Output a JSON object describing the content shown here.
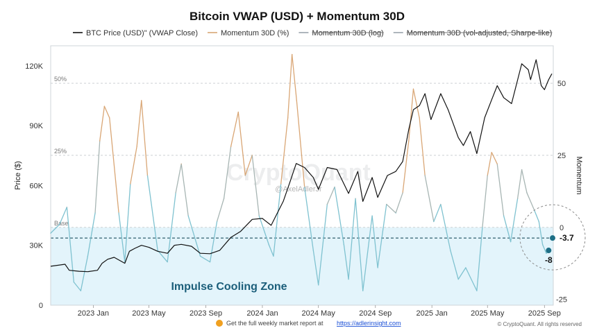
{
  "chart_data": {
    "type": "line",
    "title": "Bitcoin VWAP (USD) + Momentum 30D",
    "legend": [
      {
        "label": "BTC Price (USD)\" (VWAP Close)",
        "color": "#111111",
        "struck": false
      },
      {
        "label": "Momentum 30D (%)",
        "color": "#d9a675",
        "struck": false
      },
      {
        "label": "Momentum 30D (log)",
        "color": "#9aa3ab",
        "struck": true
      },
      {
        "label": "Momentum 30D (vol-adjusted, Sharpe-like)",
        "color": "#9aa3ab",
        "struck": true
      }
    ],
    "legend_position": "top",
    "y_left": {
      "label": "Price ($)",
      "ticks": [
        "0",
        "30K",
        "60K",
        "90K",
        "120K"
      ],
      "tick_values": [
        0,
        30000,
        60000,
        90000,
        120000
      ],
      "range": [
        0,
        130000
      ]
    },
    "y_right": {
      "label": "Momentum",
      "ticks": [
        "-25",
        "0",
        "25",
        "50"
      ],
      "tick_values": [
        -25,
        0,
        25,
        50
      ],
      "range": [
        -27,
        63
      ]
    },
    "x_axis": {
      "ticks": [
        "2023 Jan",
        "2023 May",
        "2023 Sep",
        "2024 Jan",
        "2024 May",
        "2024 Sep",
        "2025 Jan",
        "2025 May",
        "2025 Sep"
      ],
      "tick_dates": [
        "2023-01-01",
        "2023-05-01",
        "2023-09-01",
        "2024-01-01",
        "2024-05-01",
        "2024-09-01",
        "2025-01-01",
        "2025-05-01",
        "2025-09-01"
      ],
      "range": [
        "2022-10-01",
        "2025-09-20"
      ]
    },
    "reference_lines": [
      {
        "label": "50%",
        "value": 50
      },
      {
        "label": "25%",
        "value": 25
      },
      {
        "label": "Base",
        "value": 0
      },
      {
        "label": "",
        "value": -3.7
      }
    ],
    "zone": {
      "label": "Impulse Cooling Zone",
      "from": -27,
      "to": 0,
      "color": "#e3f4fb"
    },
    "current_values": [
      {
        "label": "-3.7",
        "value": -3.7
      },
      {
        "label": "-8",
        "value": -8
      }
    ],
    "grid": false,
    "series": [
      {
        "name": "BTC Price (USD)\" (VWAP Close)",
        "axis": "left",
        "color": "#111111",
        "points": [
          [
            "2022-10-01",
            19500
          ],
          [
            "2022-11-01",
            20500
          ],
          [
            "2022-11-10",
            17500
          ],
          [
            "2022-12-01",
            17000
          ],
          [
            "2022-12-20",
            16800
          ],
          [
            "2023-01-10",
            17500
          ],
          [
            "2023-01-20",
            21000
          ],
          [
            "2023-02-01",
            23000
          ],
          [
            "2023-02-15",
            24000
          ],
          [
            "2023-03-10",
            21000
          ],
          [
            "2023-03-20",
            27000
          ],
          [
            "2023-04-01",
            28500
          ],
          [
            "2023-04-15",
            30000
          ],
          [
            "2023-05-01",
            29000
          ],
          [
            "2023-05-20",
            27000
          ],
          [
            "2023-06-10",
            26000
          ],
          [
            "2023-06-25",
            30000
          ],
          [
            "2023-07-10",
            30500
          ],
          [
            "2023-08-01",
            29500
          ],
          [
            "2023-08-20",
            26000
          ],
          [
            "2023-09-10",
            25800
          ],
          [
            "2023-10-01",
            27500
          ],
          [
            "2023-10-25",
            34000
          ],
          [
            "2023-11-15",
            37000
          ],
          [
            "2023-12-10",
            43000
          ],
          [
            "2024-01-01",
            43500
          ],
          [
            "2024-01-20",
            40000
          ],
          [
            "2024-02-15",
            52000
          ],
          [
            "2024-03-01",
            62000
          ],
          [
            "2024-03-14",
            71000
          ],
          [
            "2024-04-01",
            69000
          ],
          [
            "2024-04-20",
            64000
          ],
          [
            "2024-05-01",
            58000
          ],
          [
            "2024-05-20",
            69000
          ],
          [
            "2024-06-10",
            68000
          ],
          [
            "2024-07-05",
            56000
          ],
          [
            "2024-07-25",
            67000
          ],
          [
            "2024-08-05",
            52000
          ],
          [
            "2024-08-25",
            64000
          ],
          [
            "2024-09-06",
            54000
          ],
          [
            "2024-09-27",
            65000
          ],
          [
            "2024-10-15",
            67000
          ],
          [
            "2024-10-30",
            72000
          ],
          [
            "2024-11-12",
            88000
          ],
          [
            "2024-11-22",
            98000
          ],
          [
            "2024-12-05",
            100000
          ],
          [
            "2024-12-17",
            106000
          ],
          [
            "2024-12-30",
            93000
          ],
          [
            "2025-01-20",
            106000
          ],
          [
            "2025-02-05",
            98000
          ],
          [
            "2025-02-27",
            84000
          ],
          [
            "2025-03-10",
            80000
          ],
          [
            "2025-03-25",
            87000
          ],
          [
            "2025-04-08",
            76000
          ],
          [
            "2025-04-25",
            94000
          ],
          [
            "2025-05-10",
            103000
          ],
          [
            "2025-05-22",
            110000
          ],
          [
            "2025-06-05",
            104000
          ],
          [
            "2025-06-22",
            101000
          ],
          [
            "2025-07-14",
            121000
          ],
          [
            "2025-07-28",
            118000
          ],
          [
            "2025-08-02",
            113000
          ],
          [
            "2025-08-14",
            123000
          ],
          [
            "2025-08-25",
            110000
          ],
          [
            "2025-09-01",
            108000
          ],
          [
            "2025-09-10",
            113000
          ],
          [
            "2025-09-17",
            116000
          ]
        ]
      },
      {
        "name": "Momentum 30D (%)",
        "axis": "right",
        "color": "#8fc3cf",
        "points": [
          [
            "2022-10-01",
            -2
          ],
          [
            "2022-10-20",
            1
          ],
          [
            "2022-11-05",
            7
          ],
          [
            "2022-11-20",
            -19
          ],
          [
            "2022-12-05",
            -22
          ],
          [
            "2022-12-20",
            -10
          ],
          [
            "2023-01-05",
            5
          ],
          [
            "2023-01-15",
            30
          ],
          [
            "2023-01-25",
            42
          ],
          [
            "2023-02-05",
            38
          ],
          [
            "2023-02-25",
            5
          ],
          [
            "2023-03-10",
            -12
          ],
          [
            "2023-03-22",
            15
          ],
          [
            "2023-04-05",
            28
          ],
          [
            "2023-04-15",
            44
          ],
          [
            "2023-04-28",
            18
          ],
          [
            "2023-05-20",
            -8
          ],
          [
            "2023-06-10",
            -12
          ],
          [
            "2023-06-28",
            12
          ],
          [
            "2023-07-10",
            22
          ],
          [
            "2023-07-25",
            4
          ],
          [
            "2023-08-20",
            -10
          ],
          [
            "2023-09-10",
            -12
          ],
          [
            "2023-09-25",
            2
          ],
          [
            "2023-10-10",
            10
          ],
          [
            "2023-10-25",
            28
          ],
          [
            "2023-11-10",
            40
          ],
          [
            "2023-11-25",
            18
          ],
          [
            "2023-12-10",
            25
          ],
          [
            "2023-12-25",
            4
          ],
          [
            "2024-01-15",
            -6
          ],
          [
            "2024-01-25",
            -10
          ],
          [
            "2024-02-10",
            15
          ],
          [
            "2024-02-25",
            38
          ],
          [
            "2024-03-05",
            60
          ],
          [
            "2024-03-15",
            44
          ],
          [
            "2024-04-01",
            14
          ],
          [
            "2024-04-20",
            -8
          ],
          [
            "2024-05-01",
            -20
          ],
          [
            "2024-05-20",
            8
          ],
          [
            "2024-06-05",
            14
          ],
          [
            "2024-06-25",
            -6
          ],
          [
            "2024-07-05",
            -18
          ],
          [
            "2024-07-20",
            10
          ],
          [
            "2024-08-05",
            -22
          ],
          [
            "2024-08-25",
            4
          ],
          [
            "2024-09-06",
            -14
          ],
          [
            "2024-09-25",
            8
          ],
          [
            "2024-10-15",
            5
          ],
          [
            "2024-10-30",
            12
          ],
          [
            "2024-11-12",
            30
          ],
          [
            "2024-11-22",
            48
          ],
          [
            "2024-12-05",
            38
          ],
          [
            "2024-12-17",
            18
          ],
          [
            "2025-01-05",
            2
          ],
          [
            "2025-01-20",
            8
          ],
          [
            "2025-02-10",
            -8
          ],
          [
            "2025-02-27",
            -18
          ],
          [
            "2025-03-15",
            -14
          ],
          [
            "2025-04-08",
            -22
          ],
          [
            "2025-04-20",
            0
          ],
          [
            "2025-05-01",
            18
          ],
          [
            "2025-05-10",
            26
          ],
          [
            "2025-05-22",
            22
          ],
          [
            "2025-06-05",
            4
          ],
          [
            "2025-06-20",
            -5
          ],
          [
            "2025-07-05",
            10
          ],
          [
            "2025-07-14",
            20
          ],
          [
            "2025-07-25",
            12
          ],
          [
            "2025-08-10",
            6
          ],
          [
            "2025-08-20",
            2
          ],
          [
            "2025-08-28",
            -6
          ],
          [
            "2025-09-05",
            -9
          ],
          [
            "2025-09-10",
            -8
          ]
        ]
      }
    ]
  },
  "watermark": {
    "brand": "CryptoQuant",
    "author": "@AxelAdlerJr"
  },
  "footer": {
    "text": "Get the full weekly market report at",
    "link": "https://adlerinsight.com",
    "copyright": "© CryptoQuant. All rights reserved"
  }
}
